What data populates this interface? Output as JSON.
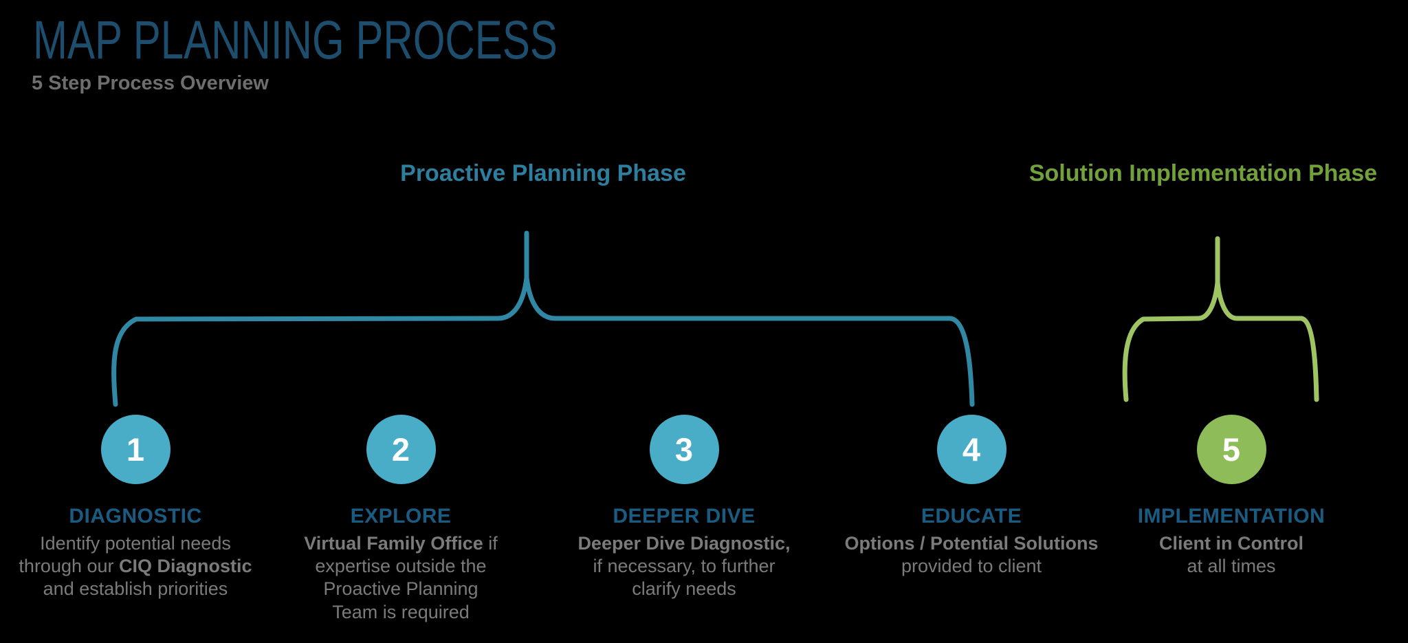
{
  "header": {
    "title": "MAP PLANNING PROCESS",
    "subtitle": "5 Step Process Overview"
  },
  "phases": {
    "proactive": {
      "label": "Proactive Planning Phase",
      "color": "#2e7e9e",
      "steps_covered": "1-4"
    },
    "implementation": {
      "label": "Solution Implementation Phase",
      "color": "#72a03b",
      "steps_covered": "5"
    }
  },
  "colors": {
    "background": "#000000",
    "title_blue": "#1d4e6e",
    "subtitle_gray": "#6e6e6e",
    "step_name_blue": "#1a5c81",
    "body_gray": "#7b7b7b",
    "circle_teal": "#4aadc8",
    "circle_green": "#8dbc58",
    "brace_blue": "#3088a4",
    "brace_green": "#9fc463",
    "circle_number_white": "#ffffff"
  },
  "steps": [
    {
      "number": "1",
      "name": "DIAGNOSTIC",
      "circle_color": "#4aadc8",
      "lines": [
        {
          "pre": "Identify potential needs",
          "bold": "",
          "post": ""
        },
        {
          "pre": "through our ",
          "bold": "CIQ Diagnostic",
          "post": ""
        },
        {
          "pre": "and establish priorities",
          "bold": "",
          "post": ""
        }
      ]
    },
    {
      "number": "2",
      "name": "EXPLORE",
      "circle_color": "#4aadc8",
      "lines": [
        {
          "pre": "",
          "bold": "Virtual Family Office",
          "post": " if"
        },
        {
          "pre": "expertise outside the",
          "bold": "",
          "post": ""
        },
        {
          "pre": "Proactive Planning",
          "bold": "",
          "post": ""
        },
        {
          "pre": "Team is required",
          "bold": "",
          "post": ""
        }
      ]
    },
    {
      "number": "3",
      "name": "DEEPER DIVE",
      "circle_color": "#4aadc8",
      "lines": [
        {
          "pre": "",
          "bold": "Deeper Dive Diagnostic,",
          "post": ""
        },
        {
          "pre": "if necessary, to further",
          "bold": "",
          "post": ""
        },
        {
          "pre": "clarify needs",
          "bold": "",
          "post": ""
        }
      ]
    },
    {
      "number": "4",
      "name": "EDUCATE",
      "circle_color": "#4aadc8",
      "lines": [
        {
          "pre": "",
          "bold": "Options / Potential Solutions",
          "post": ""
        },
        {
          "pre": "provided to client",
          "bold": "",
          "post": ""
        }
      ]
    },
    {
      "number": "5",
      "name": "IMPLEMENTATION",
      "circle_color": "#8dbc58",
      "lines": [
        {
          "pre": "",
          "bold": "Client in Control",
          "post": ""
        },
        {
          "pre": "at all times",
          "bold": "",
          "post": ""
        }
      ]
    }
  ]
}
